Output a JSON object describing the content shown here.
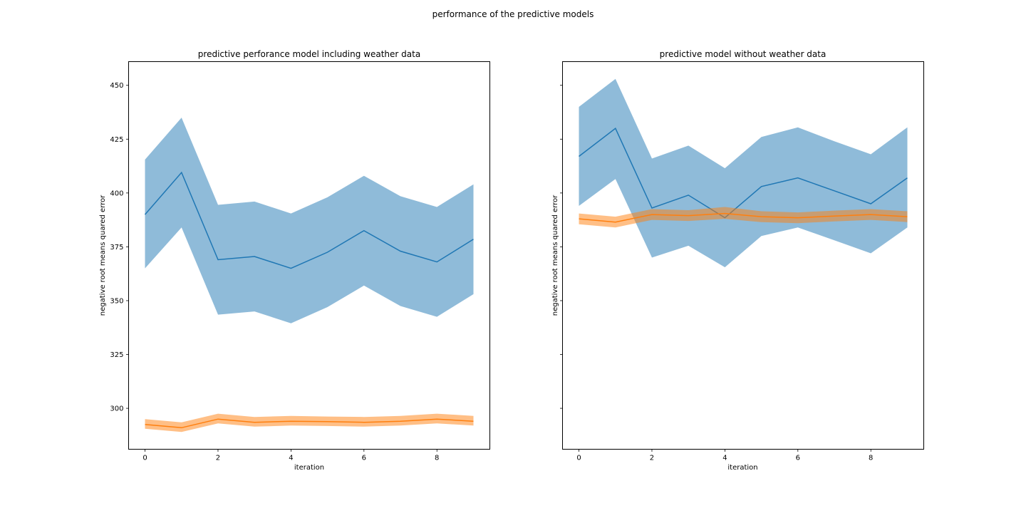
{
  "figure": {
    "title": "performance of the predictive models"
  },
  "colors": {
    "blue": "#1f77b4",
    "blue_band": "#1f77b4",
    "orange": "#ff7f0e",
    "orange_band": "#ff7f0e"
  },
  "chart_data": [
    {
      "type": "line",
      "title": "predictive perforance model including weather data",
      "xlabel": "iteration",
      "ylabel": "negative root means quared error",
      "xlim": [
        -0.45,
        9.45
      ],
      "ylim": [
        281,
        461
      ],
      "x_ticks": [
        0,
        2,
        4,
        6,
        8
      ],
      "y_ticks": [
        300,
        325,
        350,
        375,
        400,
        425,
        450
      ],
      "show_y_tick_labels": true,
      "grid": false,
      "x": [
        0,
        1,
        2,
        3,
        4,
        5,
        6,
        7,
        8,
        9
      ],
      "series": [
        {
          "color": "#1f77b4",
          "values": [
            390,
            409.5,
            369,
            370.5,
            365,
            372.5,
            382.5,
            373,
            368,
            378.5
          ],
          "lower": [
            365,
            384,
            343.5,
            345,
            339.5,
            347,
            357,
            347.5,
            342.5,
            353
          ],
          "upper": [
            415.5,
            435,
            394.5,
            396,
            390.5,
            398,
            408,
            398.5,
            393.5,
            404
          ]
        },
        {
          "color": "#ff7f0e",
          "values": [
            292.5,
            291,
            295,
            293.5,
            294,
            293.8,
            293.5,
            294,
            295,
            294
          ],
          "lower": [
            290.5,
            289,
            293,
            291.5,
            292,
            291.8,
            291.5,
            292,
            293,
            292
          ],
          "upper": [
            295,
            293.5,
            297.5,
            296,
            296.5,
            296.2,
            296,
            296.5,
            297.5,
            296.5
          ]
        }
      ]
    },
    {
      "type": "line",
      "title": "predictive model without weather data",
      "xlabel": "iteration",
      "ylabel": "negative root means quared error",
      "xlim": [
        -0.45,
        9.45
      ],
      "ylim": [
        281,
        461
      ],
      "x_ticks": [
        0,
        2,
        4,
        6,
        8
      ],
      "y_ticks": [
        300,
        325,
        350,
        375,
        400,
        425,
        450
      ],
      "show_y_tick_labels": false,
      "grid": false,
      "x": [
        0,
        1,
        2,
        3,
        4,
        5,
        6,
        7,
        8,
        9
      ],
      "series": [
        {
          "color": "#1f77b4",
          "values": [
            417,
            430,
            393,
            399,
            388.5,
            403,
            407,
            401,
            395,
            407
          ],
          "lower": [
            394,
            406.5,
            370,
            375.5,
            365.5,
            380,
            384,
            378,
            372,
            384
          ],
          "upper": [
            440,
            453,
            416,
            422,
            411.5,
            426,
            430.5,
            424,
            418,
            430.5
          ]
        },
        {
          "color": "#ff7f0e",
          "values": [
            388,
            386.5,
            390,
            389.5,
            390.5,
            389,
            388.5,
            389.3,
            390,
            389
          ],
          "lower": [
            385.5,
            384,
            387.5,
            387,
            388,
            386.5,
            386,
            386.8,
            387.5,
            386.5
          ],
          "upper": [
            390.5,
            389,
            392.5,
            392,
            393.5,
            391.5,
            391,
            391.8,
            392.5,
            391.5
          ]
        }
      ]
    }
  ]
}
